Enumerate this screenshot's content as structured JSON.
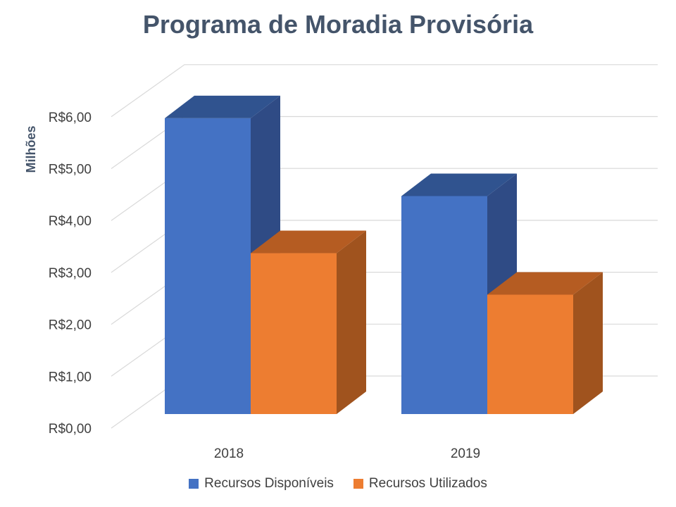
{
  "chart_data": {
    "type": "bar",
    "title": "Programa de Moradia Provisória",
    "ylabel": "Milhões",
    "xlabel": "",
    "categories": [
      "2018",
      "2019"
    ],
    "series": [
      {
        "name": "Recursos Disponíveis",
        "values": [
          5.7,
          4.2
        ],
        "color": "#4472c4",
        "side_color": "#2f4b85",
        "top_color": "#30538f"
      },
      {
        "name": "Recursos Utilizados",
        "values": [
          3.1,
          2.3
        ],
        "color": "#ed7d31",
        "side_color": "#a0531e",
        "top_color": "#b55c22"
      }
    ],
    "y_ticks": [
      "R$0,00",
      "R$1,00",
      "R$2,00",
      "R$3,00",
      "R$4,00",
      "R$5,00",
      "R$6,00"
    ],
    "ylim": [
      0,
      6
    ],
    "grid": true,
    "legend_position": "bottom"
  }
}
